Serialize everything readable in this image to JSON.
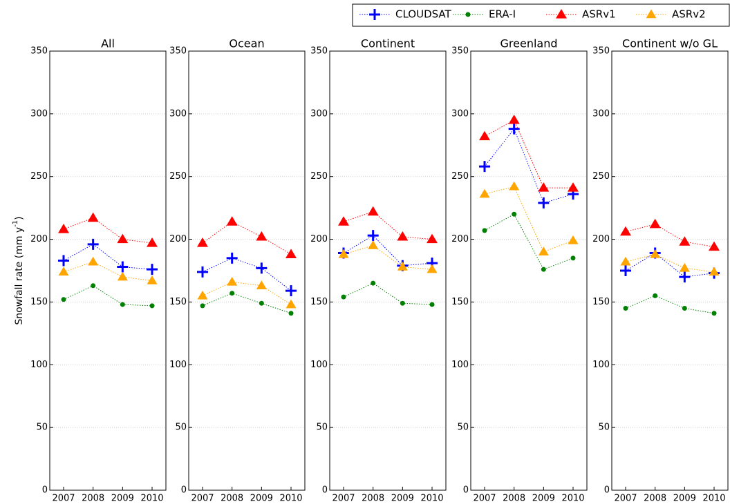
{
  "chart_data": [
    {
      "type": "line",
      "title": "All",
      "ylabel": "Snowfall rate (mm y",
      "ylabel_sup": "-1",
      "ylabel_end": ")",
      "categories": [
        "2007",
        "2008",
        "2009",
        "2010"
      ],
      "ylim": [
        0,
        350
      ],
      "yticks": [
        0,
        50,
        100,
        150,
        200,
        250,
        300,
        350
      ],
      "grid": true,
      "series": [
        {
          "name": "CLOUDSAT",
          "color": "#0000ff",
          "values": [
            183,
            196,
            178,
            176
          ]
        },
        {
          "name": "ERA-I",
          "color": "#008000",
          "values": [
            152,
            163,
            148,
            147
          ]
        },
        {
          "name": "ASRv1",
          "color": "#ff0000",
          "values": [
            208,
            217,
            200,
            197
          ]
        },
        {
          "name": "ASRv2",
          "color": "#ffa500",
          "values": [
            174,
            182,
            170,
            167
          ]
        }
      ]
    },
    {
      "type": "line",
      "title": "Ocean",
      "categories": [
        "2007",
        "2008",
        "2009",
        "2010"
      ],
      "ylim": [
        0,
        350
      ],
      "yticks": [
        0,
        50,
        100,
        150,
        200,
        250,
        300,
        350
      ],
      "grid": true,
      "series": [
        {
          "name": "CLOUDSAT",
          "color": "#0000ff",
          "values": [
            174,
            185,
            177,
            159
          ]
        },
        {
          "name": "ERA-I",
          "color": "#008000",
          "values": [
            147,
            157,
            149,
            141
          ]
        },
        {
          "name": "ASRv1",
          "color": "#ff0000",
          "values": [
            197,
            214,
            202,
            188
          ]
        },
        {
          "name": "ASRv2",
          "color": "#ffa500",
          "values": [
            155,
            166,
            163,
            148
          ]
        }
      ]
    },
    {
      "type": "line",
      "title": "Continent",
      "categories": [
        "2007",
        "2008",
        "2009",
        "2010"
      ],
      "ylim": [
        0,
        350
      ],
      "yticks": [
        0,
        50,
        100,
        150,
        200,
        250,
        300,
        350
      ],
      "grid": true,
      "series": [
        {
          "name": "CLOUDSAT",
          "color": "#0000ff",
          "values": [
            189,
            203,
            179,
            181
          ]
        },
        {
          "name": "ERA-I",
          "color": "#008000",
          "values": [
            154,
            165,
            149,
            148
          ]
        },
        {
          "name": "ASRv1",
          "color": "#ff0000",
          "values": [
            214,
            222,
            202,
            200
          ]
        },
        {
          "name": "ASRv2",
          "color": "#ffa500",
          "values": [
            188,
            195,
            178,
            176
          ]
        }
      ]
    },
    {
      "type": "line",
      "title": "Greenland",
      "categories": [
        "2007",
        "2008",
        "2009",
        "2010"
      ],
      "ylim": [
        0,
        350
      ],
      "yticks": [
        0,
        50,
        100,
        150,
        200,
        250,
        300,
        350
      ],
      "grid": true,
      "series": [
        {
          "name": "CLOUDSAT",
          "color": "#0000ff",
          "values": [
            258,
            288,
            229,
            236
          ]
        },
        {
          "name": "ERA-I",
          "color": "#008000",
          "values": [
            207,
            220,
            176,
            185
          ]
        },
        {
          "name": "ASRv1",
          "color": "#ff0000",
          "values": [
            282,
            295,
            241,
            241
          ]
        },
        {
          "name": "ASRv2",
          "color": "#ffa500",
          "values": [
            236,
            242,
            190,
            199
          ]
        }
      ]
    },
    {
      "type": "line",
      "title": "Continent w/o GL",
      "categories": [
        "2007",
        "2008",
        "2009",
        "2010"
      ],
      "ylim": [
        0,
        350
      ],
      "yticks": [
        0,
        50,
        100,
        150,
        200,
        250,
        300,
        350
      ],
      "grid": true,
      "series": [
        {
          "name": "CLOUDSAT",
          "color": "#0000ff",
          "values": [
            175,
            189,
            170,
            173
          ]
        },
        {
          "name": "ERA-I",
          "color": "#008000",
          "values": [
            145,
            155,
            145,
            141
          ]
        },
        {
          "name": "ASRv1",
          "color": "#ff0000",
          "values": [
            206,
            212,
            198,
            194
          ]
        },
        {
          "name": "ASRv2",
          "color": "#ffa500",
          "values": [
            182,
            188,
            177,
            174
          ]
        }
      ]
    }
  ]
}
